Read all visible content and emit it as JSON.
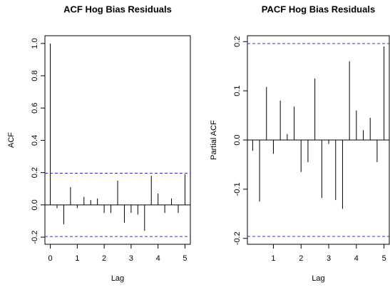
{
  "chart_data": [
    {
      "type": "stem",
      "title": "ACF Hog Bias Residuals",
      "xlabel": "Lag",
      "ylabel": "ACF",
      "x": [
        0,
        0.25,
        0.5,
        0.75,
        1,
        1.25,
        1.5,
        1.75,
        2,
        2.25,
        2.5,
        2.75,
        3,
        3.25,
        3.5,
        3.75,
        4,
        4.25,
        4.5,
        4.75,
        5
      ],
      "values": [
        1.0,
        -0.02,
        -0.12,
        0.11,
        -0.02,
        0.05,
        0.03,
        0.04,
        -0.05,
        -0.05,
        0.15,
        -0.11,
        -0.05,
        -0.06,
        -0.16,
        0.18,
        0.07,
        -0.05,
        0.04,
        -0.05,
        0.19
      ],
      "color": "#000000",
      "ci_lines": [
        0.196,
        -0.196
      ],
      "ci_color": "#3333cc",
      "xlim": [
        -0.2,
        5.2
      ],
      "ylim": [
        -0.244,
        1.048
      ],
      "xticks": [
        0,
        1,
        2,
        3,
        4,
        5
      ],
      "yticks": [
        -0.2,
        {
          "value": 0,
          "label": "0.0"
        },
        0.2,
        0.4,
        0.6,
        0.8,
        {
          "value": 1,
          "label": "1.0"
        }
      ]
    },
    {
      "type": "stem",
      "title": "PACF Hog Bias Residuals",
      "xlabel": "Lag",
      "ylabel": "Partial ACF",
      "x": [
        0.25,
        0.5,
        0.75,
        1,
        1.25,
        1.5,
        1.75,
        2,
        2.25,
        2.5,
        2.75,
        3,
        3.25,
        3.5,
        3.75,
        4,
        4.25,
        4.5,
        4.75,
        5
      ],
      "values": [
        -0.022,
        -0.125,
        0.108,
        -0.028,
        0.08,
        0.012,
        0.068,
        -0.065,
        -0.045,
        0.125,
        -0.118,
        -0.008,
        -0.122,
        -0.14,
        0.16,
        0.06,
        0.02,
        0.045,
        -0.045,
        0.19
      ],
      "color": "#000000",
      "ci_lines": [
        0.196,
        -0.196
      ],
      "ci_color": "#3333cc",
      "xlim": [
        0.06,
        5.19
      ],
      "ylim": [
        -0.212,
        0.212
      ],
      "xticks": [
        1,
        2,
        3,
        4,
        5
      ],
      "yticks": [
        -0.2,
        -0.1,
        {
          "value": 0,
          "label": "0.0"
        },
        0.1,
        0.2
      ]
    }
  ]
}
